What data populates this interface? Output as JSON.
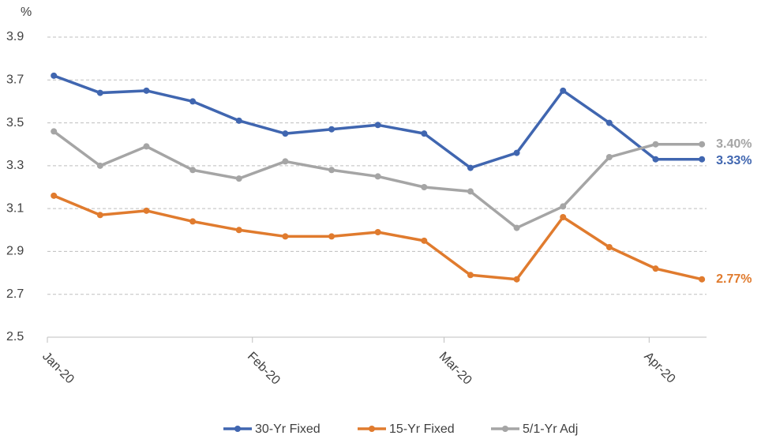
{
  "chart_data": {
    "type": "line",
    "y_label": "%",
    "x": [
      0,
      1,
      2,
      3,
      4,
      5,
      6,
      7,
      8,
      9,
      10,
      11,
      12,
      13,
      14
    ],
    "xlim": [
      -0.14,
      14.1
    ],
    "xticks": [
      {
        "value": -0.14,
        "label": "Jan-20"
      },
      {
        "value": 4.29,
        "label": "Feb-20"
      },
      {
        "value": 8.43,
        "label": "Mar-20"
      },
      {
        "value": 12.86,
        "label": "Apr-20"
      }
    ],
    "ylim": [
      2.5,
      3.9
    ],
    "yticks": [
      2.5,
      2.7,
      2.9,
      3.1,
      3.3,
      3.5,
      3.7,
      3.9
    ],
    "grid": true,
    "legend": "bottom",
    "series": [
      {
        "name": "30-Yr Fixed",
        "color": "#4066b0",
        "values": [
          3.72,
          3.64,
          3.65,
          3.6,
          3.51,
          3.45,
          3.47,
          3.49,
          3.45,
          3.29,
          3.36,
          3.65,
          3.5,
          3.33,
          3.33
        ],
        "value_labels": [
          null,
          null,
          null,
          null,
          null,
          null,
          null,
          null,
          null,
          null,
          null,
          null,
          null,
          null,
          "3.33%"
        ]
      },
      {
        "name": "15-Yr Fixed",
        "color": "#e07b2e",
        "values": [
          3.16,
          3.07,
          3.09,
          3.04,
          3.0,
          2.97,
          2.97,
          2.99,
          2.95,
          2.79,
          2.77,
          3.06,
          2.92,
          2.82,
          2.77
        ],
        "value_labels": [
          null,
          null,
          null,
          null,
          null,
          null,
          null,
          null,
          null,
          null,
          null,
          null,
          null,
          null,
          "2.77%"
        ]
      },
      {
        "name": "5/1-Yr Adj",
        "color": "#a5a5a5",
        "values": [
          3.46,
          3.3,
          3.39,
          3.28,
          3.24,
          3.32,
          3.28,
          3.25,
          3.2,
          3.18,
          3.01,
          3.11,
          3.34,
          3.4,
          3.4
        ],
        "value_labels": [
          null,
          null,
          null,
          null,
          null,
          null,
          null,
          null,
          null,
          null,
          null,
          null,
          null,
          null,
          "3.40%"
        ]
      }
    ]
  }
}
